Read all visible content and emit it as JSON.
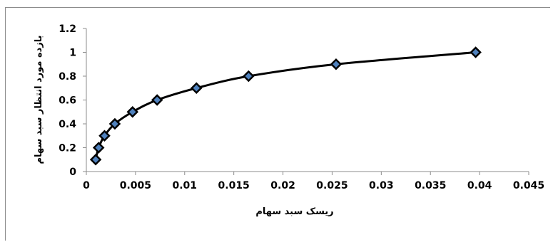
{
  "chart_data": {
    "type": "scatter",
    "title": "",
    "xlabel": "ریسک سبد سهام",
    "ylabel": "بازده مورد انتظار سبد سهام",
    "xlim": [
      0,
      0.045
    ],
    "ylim": [
      0,
      1.2
    ],
    "xticks": [
      "0",
      "0.005",
      "0.01",
      "0.015",
      "0.02",
      "0.025",
      "0.03",
      "0.035",
      "0.04",
      "0.045"
    ],
    "yticks": [
      "0",
      "0.2",
      "0.4",
      "0.6",
      "0.8",
      "1",
      "1.2"
    ],
    "grid": false,
    "legend": false,
    "line_color": "#000000",
    "marker_fill": "#4f81bd",
    "marker_stroke": "#000000",
    "marker": "diamond",
    "smoothed_line": true,
    "series": [
      {
        "x": [
          0.00095,
          0.00125,
          0.00185,
          0.0029,
          0.0047,
          0.0072,
          0.0112,
          0.0165,
          0.0254,
          0.0396
        ],
        "y": [
          0.1,
          0.2,
          0.3,
          0.4,
          0.5,
          0.6,
          0.7,
          0.8,
          0.9,
          1.0
        ]
      }
    ]
  }
}
